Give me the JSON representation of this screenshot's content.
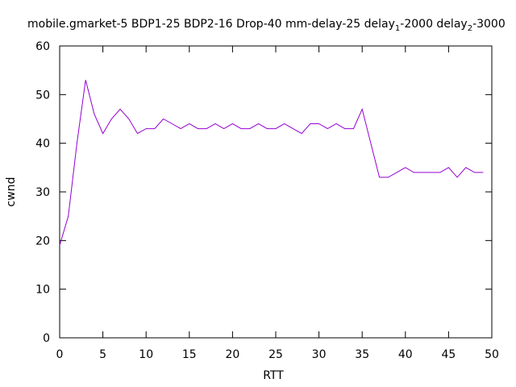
{
  "chart_data": {
    "type": "line",
    "title_parts": {
      "main": "mobile.gmarket-5 BDP1-25 BDP2-16 Drop-40 mm-delay-25 delay",
      "sub1": "1",
      "mid": "-2000 delay",
      "sub2": "2",
      "tail": "-3000"
    },
    "xlabel": "RTT",
    "ylabel": "cwnd",
    "xlim": [
      0,
      50
    ],
    "ylim": [
      0,
      60
    ],
    "xticks": [
      0,
      5,
      10,
      15,
      20,
      25,
      30,
      35,
      40,
      45,
      50
    ],
    "yticks": [
      0,
      10,
      20,
      30,
      40,
      50,
      60
    ],
    "grid": false,
    "line_color": "#9400d3",
    "series": [
      {
        "x": [
          0,
          1,
          2,
          3,
          4,
          5,
          6,
          7,
          8,
          9,
          10,
          11,
          12,
          13,
          14,
          15,
          16,
          17,
          18,
          19,
          20,
          21,
          22,
          23,
          24,
          25,
          26,
          27,
          28,
          29,
          30,
          31,
          32,
          33,
          34,
          35,
          36,
          37,
          38,
          39,
          40,
          41,
          42,
          43,
          44,
          45,
          46,
          47,
          48,
          49
        ],
        "values": [
          19,
          25,
          40,
          53,
          46,
          42,
          45,
          47,
          45,
          42,
          43,
          43,
          45,
          44,
          43,
          44,
          43,
          43,
          44,
          43,
          44,
          43,
          43,
          44,
          43,
          43,
          44,
          43,
          42,
          44,
          44,
          43,
          44,
          43,
          43,
          47,
          40,
          33,
          33,
          34,
          35,
          34,
          34,
          34,
          34,
          35,
          33,
          35,
          34,
          34
        ]
      }
    ]
  }
}
